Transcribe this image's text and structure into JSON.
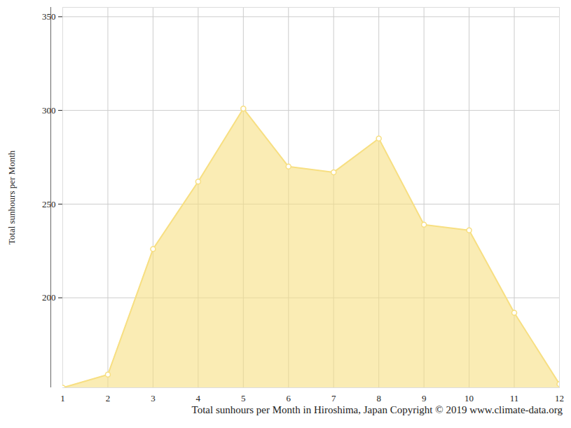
{
  "chart_data": {
    "type": "area",
    "caption": "Total sunhours per Month in Hiroshima, Japan Copyright © 2019 www.climate-data.org",
    "y_label": "Total sunhours per Month",
    "x": [
      1,
      2,
      3,
      4,
      5,
      6,
      7,
      8,
      9,
      10,
      11,
      12
    ],
    "values": [
      152,
      159,
      226,
      262,
      301,
      270,
      267,
      285,
      239,
      236,
      192,
      154
    ],
    "color": "#f7df82",
    "marker": "circle",
    "xlim": [
      1,
      12
    ],
    "xticks": [
      1,
      2,
      3,
      4,
      5,
      6,
      7,
      8,
      9,
      10,
      11,
      12
    ],
    "ylim": [
      152,
      355
    ],
    "yticks": [
      200,
      250,
      300,
      350
    ],
    "grid": true
  }
}
